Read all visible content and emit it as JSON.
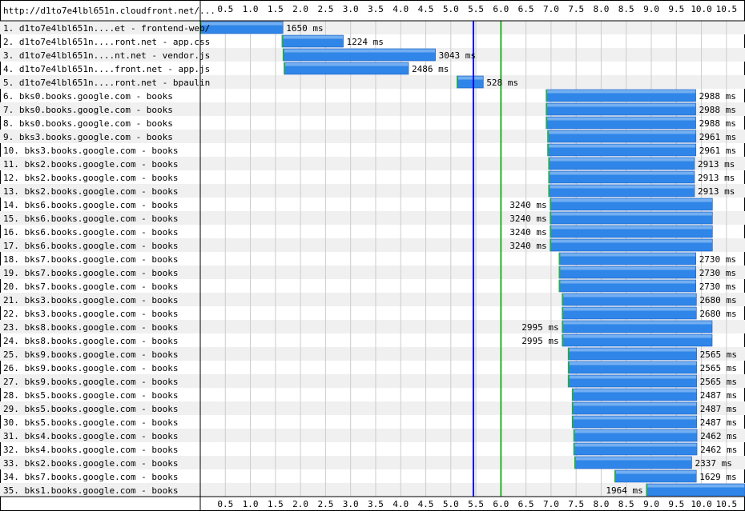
{
  "page_url_label": "http://d1to7e4lbl651n.cloudfront.net/...",
  "chart_data": {
    "type": "waterfall",
    "x_unit": "s",
    "x_ticks": [
      0.5,
      1.0,
      1.5,
      2.0,
      2.5,
      3.0,
      3.5,
      4.0,
      4.5,
      5.0,
      5.5,
      6.0,
      6.5,
      7.0,
      7.5,
      8.0,
      8.5,
      9.0,
      9.5,
      10.0,
      10.5
    ],
    "xlim": [
      0,
      10.87
    ],
    "markers": [
      {
        "name": "start-render",
        "x": 5.45,
        "color": "#0000ee"
      },
      {
        "name": "document-complete",
        "x": 6.0,
        "color": "#28b428"
      }
    ],
    "colors": {
      "bar": "#2f86e8",
      "bar_dark": "#1a5fc4",
      "row_alt": "#f0f0f0",
      "grid": "#cccccc"
    },
    "rows": [
      {
        "label": "1. d1to7e4lbl651n....et - frontend-web/",
        "start": 0.0,
        "duration_ms": 1650,
        "duration_label": "1650 ms"
      },
      {
        "label": "2. d1to7e4lbl651n....ront.net - app.css",
        "start": 1.63,
        "duration_ms": 1224,
        "duration_label": "1224 ms"
      },
      {
        "label": "3. d1to7e4lbl651n....nt.net - vendor.js",
        "start": 1.65,
        "duration_ms": 3043,
        "duration_label": "3043 ms"
      },
      {
        "label": "4. d1to7e4lbl651n....front.net - app.js",
        "start": 1.67,
        "duration_ms": 2486,
        "duration_label": "2486 ms"
      },
      {
        "label": "5. d1to7e4lbl651n....ront.net - bpaulin",
        "start": 5.12,
        "duration_ms": 528,
        "duration_label": "528 ms"
      },
      {
        "label": "6. bks0.books.google.com - books",
        "start": 6.9,
        "duration_ms": 2988,
        "duration_label": "2988 ms"
      },
      {
        "label": "7. bks0.books.google.com - books",
        "start": 6.9,
        "duration_ms": 2988,
        "duration_label": "2988 ms"
      },
      {
        "label": "8. bks0.books.google.com - books",
        "start": 6.9,
        "duration_ms": 2988,
        "duration_label": "2988 ms"
      },
      {
        "label": "9. bks3.books.google.com - books",
        "start": 6.93,
        "duration_ms": 2961,
        "duration_label": "2961 ms"
      },
      {
        "label": "10. bks3.books.google.com - books",
        "start": 6.93,
        "duration_ms": 2961,
        "duration_label": "2961 ms"
      },
      {
        "label": "11. bks2.books.google.com - books",
        "start": 6.95,
        "duration_ms": 2913,
        "duration_label": "2913 ms"
      },
      {
        "label": "12. bks2.books.google.com - books",
        "start": 6.95,
        "duration_ms": 2913,
        "duration_label": "2913 ms"
      },
      {
        "label": "13. bks2.books.google.com - books",
        "start": 6.95,
        "duration_ms": 2913,
        "duration_label": "2913 ms"
      },
      {
        "label": "14. bks6.books.google.com - books",
        "start": 6.98,
        "duration_ms": 3240,
        "duration_label": "3240 ms"
      },
      {
        "label": "15. bks6.books.google.com - books",
        "start": 6.98,
        "duration_ms": 3240,
        "duration_label": "3240 ms"
      },
      {
        "label": "16. bks6.books.google.com - books",
        "start": 6.98,
        "duration_ms": 3240,
        "duration_label": "3240 ms"
      },
      {
        "label": "17. bks6.books.google.com - books",
        "start": 6.98,
        "duration_ms": 3240,
        "duration_label": "3240 ms"
      },
      {
        "label": "18. bks7.books.google.com - books",
        "start": 7.16,
        "duration_ms": 2730,
        "duration_label": "2730 ms"
      },
      {
        "label": "19. bks7.books.google.com - books",
        "start": 7.16,
        "duration_ms": 2730,
        "duration_label": "2730 ms"
      },
      {
        "label": "20. bks7.books.google.com - books",
        "start": 7.16,
        "duration_ms": 2730,
        "duration_label": "2730 ms"
      },
      {
        "label": "21. bks3.books.google.com - books",
        "start": 7.22,
        "duration_ms": 2680,
        "duration_label": "2680 ms"
      },
      {
        "label": "22. bks3.books.google.com - books",
        "start": 7.22,
        "duration_ms": 2680,
        "duration_label": "2680 ms"
      },
      {
        "label": "23. bks8.books.google.com - books",
        "start": 7.22,
        "duration_ms": 2995,
        "duration_label": "2995 ms"
      },
      {
        "label": "24. bks8.books.google.com - books",
        "start": 7.22,
        "duration_ms": 2995,
        "duration_label": "2995 ms"
      },
      {
        "label": "25. bks9.books.google.com - books",
        "start": 7.34,
        "duration_ms": 2565,
        "duration_label": "2565 ms"
      },
      {
        "label": "26. bks9.books.google.com - books",
        "start": 7.34,
        "duration_ms": 2565,
        "duration_label": "2565 ms"
      },
      {
        "label": "27. bks9.books.google.com - books",
        "start": 7.34,
        "duration_ms": 2565,
        "duration_label": "2565 ms"
      },
      {
        "label": "28. bks5.books.google.com - books",
        "start": 7.42,
        "duration_ms": 2487,
        "duration_label": "2487 ms"
      },
      {
        "label": "29. bks5.books.google.com - books",
        "start": 7.42,
        "duration_ms": 2487,
        "duration_label": "2487 ms"
      },
      {
        "label": "30. bks5.books.google.com - books",
        "start": 7.42,
        "duration_ms": 2487,
        "duration_label": "2487 ms"
      },
      {
        "label": "31. bks4.books.google.com - books",
        "start": 7.45,
        "duration_ms": 2462,
        "duration_label": "2462 ms"
      },
      {
        "label": "32. bks4.books.google.com - books",
        "start": 7.45,
        "duration_ms": 2462,
        "duration_label": "2462 ms"
      },
      {
        "label": "33. bks2.books.google.com - books",
        "start": 7.47,
        "duration_ms": 2337,
        "duration_label": "2337 ms"
      },
      {
        "label": "34. bks7.books.google.com - books",
        "start": 8.27,
        "duration_ms": 1629,
        "duration_label": "1629 ms"
      },
      {
        "label": "35. bks1.books.google.com - books",
        "start": 8.9,
        "duration_ms": 1964,
        "duration_label": "1964 ms"
      }
    ]
  }
}
